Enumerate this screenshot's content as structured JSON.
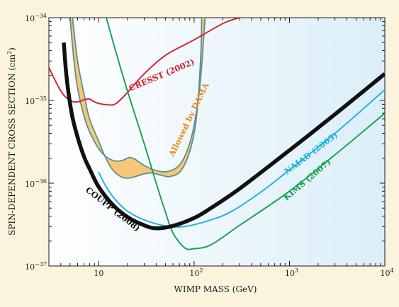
{
  "chart_data": {
    "type": "line",
    "xlabel": "WIMP MASS (GeV)",
    "ylabel_main": "SPIN-DEPENDENT CROSS SECTION (cm",
    "ylabel_sup": "2",
    "ylabel_close": ")",
    "xscale": "log",
    "yscale": "log",
    "xlim": [
      3,
      10000
    ],
    "ylim": [
      1e-37,
      1e-34
    ],
    "grid": false,
    "x_ticks": [
      {
        "value": 10,
        "base": "10",
        "exp": "",
        "label": "10"
      },
      {
        "value": 100,
        "base": "10",
        "exp": "2",
        "label": "10^2"
      },
      {
        "value": 1000,
        "base": "10",
        "exp": "3",
        "label": "10^3"
      },
      {
        "value": 10000,
        "base": "10",
        "exp": "4",
        "label": "10^4"
      }
    ],
    "y_ticks": [
      {
        "value": 1e-34,
        "base": "10",
        "exp": "−34"
      },
      {
        "value": 1e-35,
        "base": "10",
        "exp": "−35"
      },
      {
        "value": 1e-36,
        "base": "10",
        "exp": "−36"
      },
      {
        "value": 1e-37,
        "base": "10",
        "exp": "−37"
      }
    ],
    "colors": {
      "coupp": "#111111",
      "cresst": "#d4202a",
      "naiad": "#1ab0e0",
      "kims": "#16a04c",
      "dama_fill": "#f7c777",
      "dama_outline": "#5b8f92",
      "dama_label": "#e98a1c",
      "background_left": "#ffffff",
      "background_right": "#dbeef8",
      "page": "#fcf3dd"
    },
    "series": [
      {
        "key": "coupp",
        "name": "COUPP (2008)",
        "points": [
          [
            4.3,
            5e-35
          ],
          [
            4.6,
            1.9e-35
          ],
          [
            5.2,
            7e-36
          ],
          [
            6,
            3.6e-36
          ],
          [
            7,
            2.1e-36
          ],
          [
            8,
            1.5e-36
          ],
          [
            10,
            9e-37
          ],
          [
            14,
            5.5e-37
          ],
          [
            20,
            3.9e-37
          ],
          [
            30,
            3.1e-37
          ],
          [
            40,
            2.85e-37
          ],
          [
            60,
            3.05e-37
          ],
          [
            100,
            3.8e-37
          ],
          [
            150,
            5e-37
          ],
          [
            300,
            8.6e-37
          ],
          [
            1000,
            2.5e-36
          ],
          [
            3000,
            6.8e-36
          ],
          [
            10000,
            2.1e-35
          ]
        ]
      },
      {
        "key": "cresst",
        "name": "CRESST (2002)",
        "points": [
          [
            3,
            2.5e-35
          ],
          [
            4,
            1.3e-35
          ],
          [
            5,
            1e-35
          ],
          [
            6,
            9.6e-36
          ],
          [
            7,
            1.02e-35
          ],
          [
            8,
            1.04e-35
          ],
          [
            9,
            9.6e-36
          ],
          [
            10,
            9.2e-36
          ],
          [
            12,
            8.9e-36
          ],
          [
            15,
            9.1e-36
          ],
          [
            20,
            1.25e-35
          ],
          [
            30,
            2.1e-35
          ],
          [
            50,
            3.5e-35
          ],
          [
            100,
            5.4e-35
          ],
          [
            200,
            8.5e-35
          ],
          [
            300,
            1e-34
          ]
        ]
      },
      {
        "key": "naiad",
        "name": "NAIAD (2005)",
        "points": [
          [
            10,
            1.35e-36
          ],
          [
            12,
            9e-37
          ],
          [
            15,
            6.3e-37
          ],
          [
            20,
            4.6e-37
          ],
          [
            30,
            3.6e-37
          ],
          [
            50,
            3.05e-37
          ],
          [
            80,
            3e-37
          ],
          [
            150,
            3.6e-37
          ],
          [
            250,
            4.6e-37
          ],
          [
            500,
            7.8e-37
          ],
          [
            1000,
            1.45e-36
          ],
          [
            3000,
            4e-36
          ],
          [
            10000,
            1.35e-35
          ]
        ]
      },
      {
        "key": "kims",
        "name": "KIMS (2007)",
        "points": [
          [
            12,
            1e-34
          ],
          [
            15,
            4e-35
          ],
          [
            20,
            1.3e-35
          ],
          [
            30,
            3e-36
          ],
          [
            40,
            1e-36
          ],
          [
            50,
            4.5e-37
          ],
          [
            60,
            2.5e-37
          ],
          [
            80,
            1.65e-37
          ],
          [
            100,
            1.62e-37
          ],
          [
            150,
            1.8e-37
          ],
          [
            300,
            3.1e-37
          ],
          [
            1000,
            8e-37
          ],
          [
            3000,
            2.2e-36
          ],
          [
            10000,
            7e-36
          ]
        ]
      }
    ],
    "dama": {
      "name": "Allowed by DAMA",
      "upper": [
        [
          5,
          1e-34
        ],
        [
          5.5,
          3e-35
        ],
        [
          6,
          1.4e-35
        ],
        [
          7,
          6.5e-36
        ],
        [
          8,
          4.2e-36
        ],
        [
          10,
          2.6e-36
        ],
        [
          12,
          2.08e-36
        ],
        [
          15,
          1.85e-36
        ],
        [
          18,
          1.9e-36
        ],
        [
          21,
          2.05e-36
        ],
        [
          24,
          1.95e-36
        ],
        [
          28,
          1.72e-36
        ],
        [
          35,
          1.5e-36
        ],
        [
          45,
          1.38e-36
        ],
        [
          55,
          1.4e-36
        ],
        [
          70,
          1.65e-36
        ],
        [
          85,
          2.5e-36
        ],
        [
          100,
          5e-36
        ],
        [
          115,
          1.5e-35
        ],
        [
          125,
          5e-35
        ],
        [
          130,
          1e-34
        ]
      ],
      "lower": [
        [
          5.3,
          1e-34
        ],
        [
          6,
          3e-35
        ],
        [
          7,
          1.2e-35
        ],
        [
          8,
          6e-36
        ],
        [
          10,
          3.2e-36
        ],
        [
          12,
          1.95e-36
        ],
        [
          14,
          1.45e-36
        ],
        [
          17,
          1.2e-36
        ],
        [
          20,
          1.15e-36
        ],
        [
          24,
          1.2e-36
        ],
        [
          30,
          1.3e-36
        ],
        [
          36,
          1.33e-36
        ],
        [
          45,
          1.25e-36
        ],
        [
          55,
          1.2e-36
        ],
        [
          70,
          1.35e-36
        ],
        [
          85,
          2e-36
        ],
        [
          100,
          4e-36
        ],
        [
          110,
          1e-35
        ],
        [
          118,
          4e-35
        ],
        [
          120,
          1e-34
        ]
      ]
    }
  }
}
